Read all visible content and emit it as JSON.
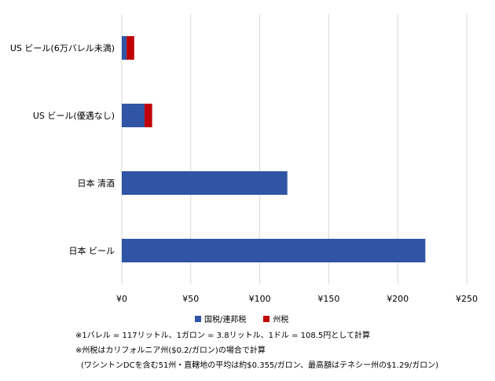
{
  "chart_data": {
    "type": "bar",
    "orientation": "horizontal",
    "stacked": true,
    "title": "",
    "xlabel": "",
    "ylabel": "",
    "categories": [
      "US ビール(6万バレル未満)",
      "US ビール(優遇なし)",
      "日本 清酒",
      "日本 ビール"
    ],
    "series": [
      {
        "name": "国税/連邦税",
        "color": "#2f55a4",
        "values": [
          3.5,
          16.5,
          120,
          220
        ]
      },
      {
        "name": "州税",
        "color": "#c00000",
        "values": [
          5.5,
          5.5,
          0,
          0
        ]
      }
    ],
    "xlim": [
      0,
      250
    ],
    "xticks": [
      0,
      50,
      100,
      150,
      200,
      250
    ],
    "tick_labels": [
      "¥0",
      "¥50",
      "¥100",
      "¥150",
      "¥200",
      "¥250"
    ],
    "grid": true,
    "legend": "bottom"
  },
  "notes": [
    "※1バレル = 117リットル、1ガロン = 3.8リットル、1ドル = 108.5円として計算",
    "※州税はカリフォルニア州($0.2/ガロン)の場合で計算",
    "(ワシントンDCを含む51州・直轄地の平均は約$0.355/ガロン、最高額はテネシー州の$1.29/ガロン)"
  ]
}
